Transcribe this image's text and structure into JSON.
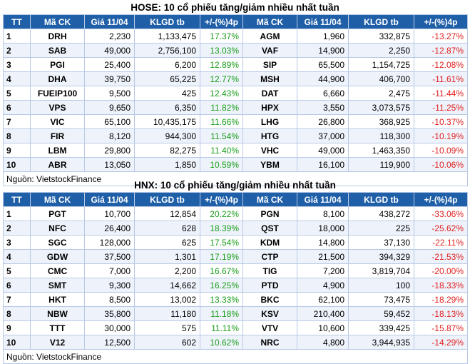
{
  "hose": {
    "title": "HOSE: 10 cổ phiếu tăng/giảm nhiều nhất tuần",
    "headers": [
      "TT",
      "Mã CK",
      "Giá 11/04",
      "KLGD tb",
      "+/-(%)4p",
      "Mã CK",
      "Giá 11/04",
      "KLGD tb",
      "+/-(%)4p"
    ],
    "rows": [
      {
        "tt": "1",
        "up_code": "DRH",
        "up_price": "2,230",
        "up_vol": "1,133,475",
        "up_pct": "17.37%",
        "dn_code": "AGM",
        "dn_price": "1,960",
        "dn_vol": "332,875",
        "dn_pct": "-13.27%"
      },
      {
        "tt": "2",
        "up_code": "SAB",
        "up_price": "49,000",
        "up_vol": "2,756,100",
        "up_pct": "13.03%",
        "dn_code": "VAF",
        "dn_price": "14,900",
        "dn_vol": "2,250",
        "dn_pct": "-12.87%"
      },
      {
        "tt": "3",
        "up_code": "PGI",
        "up_price": "25,400",
        "up_vol": "6,200",
        "up_pct": "12.89%",
        "dn_code": "SIP",
        "dn_price": "65,500",
        "dn_vol": "1,154,725",
        "dn_pct": "-12.08%"
      },
      {
        "tt": "4",
        "up_code": "DHA",
        "up_price": "39,750",
        "up_vol": "65,225",
        "up_pct": "12.77%",
        "dn_code": "MSH",
        "dn_price": "44,900",
        "dn_vol": "406,700",
        "dn_pct": "-11.61%"
      },
      {
        "tt": "5",
        "up_code": "FUEIP100",
        "up_price": "9,500",
        "up_vol": "425",
        "up_pct": "12.43%",
        "dn_code": "DAT",
        "dn_price": "6,660",
        "dn_vol": "2,475",
        "dn_pct": "-11.44%"
      },
      {
        "tt": "6",
        "up_code": "VPS",
        "up_price": "9,650",
        "up_vol": "6,350",
        "up_pct": "11.82%",
        "dn_code": "HPX",
        "dn_price": "3,550",
        "dn_vol": "3,073,575",
        "dn_pct": "-11.25%"
      },
      {
        "tt": "7",
        "up_code": "VIC",
        "up_price": "65,100",
        "up_vol": "10,435,175",
        "up_pct": "11.66%",
        "dn_code": "LHG",
        "dn_price": "26,800",
        "dn_vol": "368,925",
        "dn_pct": "-10.37%"
      },
      {
        "tt": "8",
        "up_code": "FIR",
        "up_price": "8,120",
        "up_vol": "944,300",
        "up_pct": "11.54%",
        "dn_code": "HTG",
        "dn_price": "37,000",
        "dn_vol": "118,300",
        "dn_pct": "-10.19%"
      },
      {
        "tt": "9",
        "up_code": "LBM",
        "up_price": "29,800",
        "up_vol": "82,275",
        "up_pct": "11.40%",
        "dn_code": "VHC",
        "dn_price": "49,000",
        "dn_vol": "1,463,350",
        "dn_pct": "-10.09%"
      },
      {
        "tt": "10",
        "up_code": "ABR",
        "up_price": "13,050",
        "up_vol": "1,850",
        "up_pct": "10.59%",
        "dn_code": "YBM",
        "dn_price": "16,100",
        "dn_vol": "119,900",
        "dn_pct": "-10.06%"
      }
    ],
    "source": "Nguồn: VietstockFinance"
  },
  "hnx": {
    "title": "HNX: 10 cổ phiếu tăng/giảm nhiều nhất tuần",
    "headers": [
      "TT",
      "Mã CK",
      "Giá 11/04",
      "KLGD tb",
      "+/-(%)4p",
      "Mã CK",
      "Giá 11/04",
      "KLGD tb",
      "+/-(%)4p"
    ],
    "rows": [
      {
        "tt": "1",
        "up_code": "PGT",
        "up_price": "10,700",
        "up_vol": "12,854",
        "up_pct": "20.22%",
        "dn_code": "PGN",
        "dn_price": "8,100",
        "dn_vol": "438,272",
        "dn_pct": "-33.06%"
      },
      {
        "tt": "2",
        "up_code": "NFC",
        "up_price": "26,400",
        "up_vol": "628",
        "up_pct": "18.39%",
        "dn_code": "QST",
        "dn_price": "18,000",
        "dn_vol": "225",
        "dn_pct": "-25.62%"
      },
      {
        "tt": "3",
        "up_code": "SGC",
        "up_price": "128,000",
        "up_vol": "625",
        "up_pct": "17.54%",
        "dn_code": "KDM",
        "dn_price": "14,800",
        "dn_vol": "37,130",
        "dn_pct": "-22.11%"
      },
      {
        "tt": "4",
        "up_code": "GDW",
        "up_price": "37,500",
        "up_vol": "1,301",
        "up_pct": "17.19%",
        "dn_code": "CTP",
        "dn_price": "21,500",
        "dn_vol": "394,329",
        "dn_pct": "-21.53%"
      },
      {
        "tt": "5",
        "up_code": "CMC",
        "up_price": "7,000",
        "up_vol": "2,200",
        "up_pct": "16.67%",
        "dn_code": "TIG",
        "dn_price": "7,200",
        "dn_vol": "3,819,704",
        "dn_pct": "-20.00%"
      },
      {
        "tt": "6",
        "up_code": "SMT",
        "up_price": "9,300",
        "up_vol": "14,662",
        "up_pct": "16.25%",
        "dn_code": "PTD",
        "dn_price": "4,900",
        "dn_vol": "100",
        "dn_pct": "-18.33%"
      },
      {
        "tt": "7",
        "up_code": "HKT",
        "up_price": "8,500",
        "up_vol": "13,002",
        "up_pct": "13.33%",
        "dn_code": "BKC",
        "dn_price": "62,100",
        "dn_vol": "73,475",
        "dn_pct": "-18.29%"
      },
      {
        "tt": "8",
        "up_code": "NBW",
        "up_price": "35,800",
        "up_vol": "11,180",
        "up_pct": "11.18%",
        "dn_code": "KSV",
        "dn_price": "210,400",
        "dn_vol": "59,452",
        "dn_pct": "-18.13%"
      },
      {
        "tt": "9",
        "up_code": "TTT",
        "up_price": "30,000",
        "up_vol": "575",
        "up_pct": "11.11%",
        "dn_code": "VTV",
        "dn_price": "10,600",
        "dn_vol": "339,425",
        "dn_pct": "-15.87%"
      },
      {
        "tt": "10",
        "up_code": "V12",
        "up_price": "12,500",
        "up_vol": "602",
        "up_pct": "10.62%",
        "dn_code": "NRC",
        "dn_price": "4,800",
        "dn_vol": "3,944,935",
        "dn_pct": "-14.29%"
      }
    ],
    "source": "Nguồn: VietstockFinance"
  },
  "colors": {
    "header_bg": "#1f5fa8",
    "up": "#1a9e1a",
    "down": "#e02020",
    "alt_row": "#eef3fb"
  }
}
